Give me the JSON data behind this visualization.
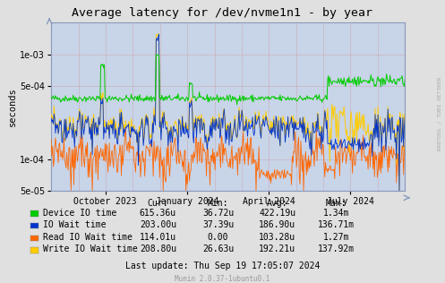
{
  "title": "Average latency for /dev/nvme1n1 - by year",
  "ylabel": "seconds",
  "background_color": "#e0e0e0",
  "plot_bg_color": "#c8d4e8",
  "line_colors": [
    "#00cc00",
    "#0033cc",
    "#ff6600",
    "#ffcc00"
  ],
  "xtick_labels": [
    "October 2023",
    "January 2024",
    "April 2024",
    "July 2024"
  ],
  "xtick_positions": [
    0.153,
    0.385,
    0.615,
    0.846
  ],
  "legend_items": [
    {
      "label": "Device IO time",
      "color": "#00cc00"
    },
    {
      "label": "IO Wait time",
      "color": "#0033cc"
    },
    {
      "label": "Read IO Wait time",
      "color": "#ff6600"
    },
    {
      "label": "Write IO Wait time",
      "color": "#ffcc00"
    }
  ],
  "table_headers": [
    "Cur:",
    "Min:",
    "Avg:",
    "Max:"
  ],
  "table_rows": [
    [
      "615.36u",
      "36.72u",
      "422.19u",
      "1.34m"
    ],
    [
      "203.00u",
      "37.39u",
      "186.90u",
      "136.71m"
    ],
    [
      "114.01u",
      "0.00",
      "103.28u",
      "1.27m"
    ],
    [
      "208.80u",
      "26.63u",
      "192.21u",
      "137.92m"
    ]
  ],
  "last_update": "Last update: Thu Sep 19 17:05:07 2024",
  "munin_version": "Munin 2.0.37-1ubuntu0.1",
  "rrdtool_label": "RRDTOOL / TOBI OETIKER",
  "n_points": 500
}
